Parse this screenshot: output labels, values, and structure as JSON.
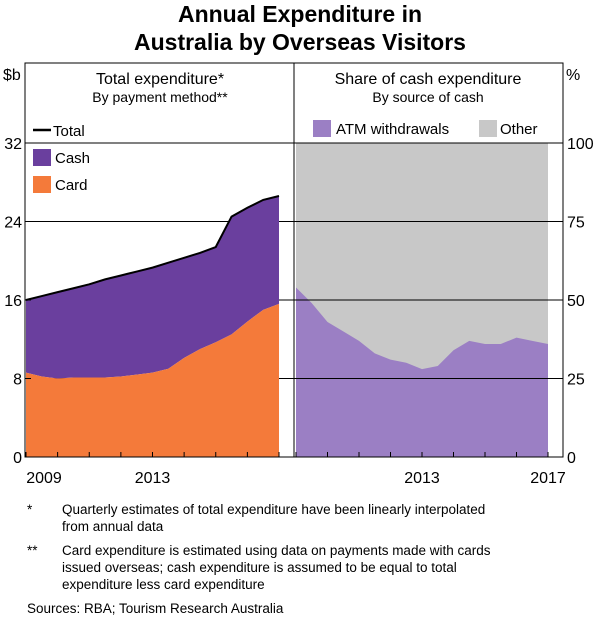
{
  "title_lines": [
    "Annual Expenditure in",
    "Australia by Overseas Visitors"
  ],
  "left_unit": "$b",
  "right_unit": "%",
  "chart_data": [
    {
      "type": "area",
      "title": "Total expenditure*",
      "subtitle": "By payment method**",
      "ylabel": "$b",
      "ylim": [
        0,
        32
      ],
      "yticks": [
        "0",
        "8",
        "16",
        "24",
        "32"
      ],
      "xlim": [
        2009.0,
        2017.0
      ],
      "xticks": [
        {
          "label": "2009",
          "x": 2009
        },
        {
          "label": "2013",
          "x": 2013
        }
      ],
      "legend": [
        {
          "label": "Total",
          "kind": "line",
          "color": "#000000"
        },
        {
          "label": "Cash",
          "kind": "area",
          "color": "#6a3f9e"
        },
        {
          "label": "Card",
          "kind": "area",
          "color": "#f47a3a"
        }
      ],
      "x": [
        2009.0,
        2009.5,
        2010.0,
        2010.5,
        2011.0,
        2011.5,
        2012.0,
        2012.5,
        2013.0,
        2013.5,
        2014.0,
        2014.5,
        2015.0,
        2015.5,
        2016.0,
        2016.5,
        2017.0
      ],
      "series": [
        {
          "name": "Card",
          "values": [
            8.6,
            8.2,
            8.0,
            8.1,
            8.1,
            8.1,
            8.2,
            8.4,
            8.6,
            9.0,
            10.1,
            11.0,
            11.7,
            12.5,
            13.8,
            15.0,
            15.6
          ]
        },
        {
          "name": "Total",
          "values": [
            16.0,
            16.4,
            16.8,
            17.2,
            17.6,
            18.1,
            18.5,
            18.9,
            19.3,
            19.8,
            20.3,
            20.8,
            21.4,
            24.5,
            25.4,
            26.2,
            26.6
          ]
        }
      ]
    },
    {
      "type": "area",
      "title": "Share of cash expenditure",
      "subtitle": "By source of cash",
      "ylabel": "%",
      "ylim": [
        0,
        100
      ],
      "yticks": [
        "0",
        "25",
        "50",
        "75",
        "100"
      ],
      "xlim": [
        2009.0,
        2017.0
      ],
      "xticks": [
        {
          "label": "2013",
          "x": 2013
        },
        {
          "label": "2017",
          "x": 2017
        }
      ],
      "legend": [
        {
          "label": "ATM withdrawals",
          "kind": "area",
          "color": "#9b7fc4"
        },
        {
          "label": "Other",
          "kind": "area",
          "color": "#c8c8c8"
        }
      ],
      "x": [
        2009.0,
        2009.5,
        2010.0,
        2010.5,
        2011.0,
        2011.5,
        2012.0,
        2012.5,
        2013.0,
        2013.5,
        2014.0,
        2014.5,
        2015.0,
        2015.5,
        2016.0,
        2016.5,
        2017.0
      ],
      "series": [
        {
          "name": "ATM withdrawals",
          "values": [
            54,
            49,
            43,
            40,
            37,
            33,
            31,
            30,
            28,
            29,
            34,
            37,
            36,
            36,
            38,
            37,
            36
          ]
        },
        {
          "name": "Other",
          "values": [
            100,
            100,
            100,
            100,
            100,
            100,
            100,
            100,
            100,
            100,
            100,
            100,
            100,
            100,
            100,
            100,
            100
          ]
        }
      ]
    }
  ],
  "notes": [
    {
      "marker": "*",
      "lines": [
        "Quarterly estimates of total expenditure have been linearly interpolated",
        "from annual data"
      ]
    },
    {
      "marker": "**",
      "lines": [
        "Card expenditure is estimated using data on payments made with cards",
        "issued overseas; cash expenditure is assumed to be equal to total",
        "expenditure less card expenditure"
      ]
    }
  ],
  "sources": "Sources: RBA; Tourism Research Australia"
}
